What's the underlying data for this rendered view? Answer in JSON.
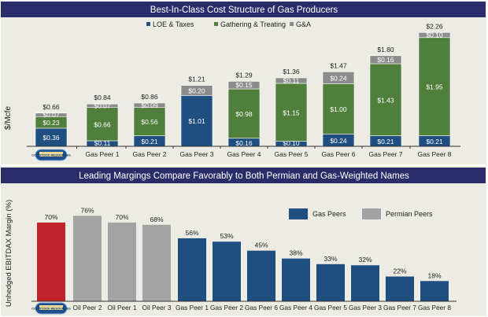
{
  "chart_data": [
    {
      "type": "bar",
      "stacked": true,
      "title": "Best-In-Class Cost Structure of Gas Producers",
      "ylabel": "$/Mcfe",
      "xlabel": "",
      "categories": [
        "Comstock Resources",
        "Gas Peer 1",
        "Gas Peer 2",
        "Gas Peer 3",
        "Gas Peer 4",
        "Gas Peer 5",
        "Gas Peer 6",
        "Gas Peer 7",
        "Gas Peer 8"
      ],
      "series": [
        {
          "name": "LOE & Taxes",
          "color": "#1f4e80",
          "values": [
            0.36,
            0.11,
            0.21,
            1.01,
            0.16,
            0.1,
            0.24,
            0.21,
            0.21
          ]
        },
        {
          "name": "Gathering & Treating",
          "color": "#4f7f3b",
          "values": [
            0.23,
            0.66,
            0.56,
            0,
            0.98,
            1.15,
            1.0,
            1.43,
            1.95
          ]
        },
        {
          "name": "G&A",
          "color": "#8c8c8c",
          "values": [
            0.07,
            0.07,
            0.09,
            0.2,
            0.15,
            0.11,
            0.24,
            0.16,
            0.1
          ]
        }
      ],
      "totals": [
        "$0.66",
        "$0.84",
        "$0.86",
        "$1.21",
        "$1.29",
        "$1.36",
        "$1.47",
        "$1.80",
        "$2.26"
      ],
      "ylim": [
        0,
        2.3
      ],
      "legend": "top-center",
      "grid": false
    },
    {
      "type": "bar",
      "title": "Leading Margings Compare Favorably to Both Permian and Gas-Weighted Names",
      "ylabel": "Unhedged EBITDAX Margin (%)",
      "xlabel": "",
      "categories": [
        "Comstock Resources",
        "Oil Peer 2",
        "Oil Peer 1",
        "Oil Peer 3",
        "Gas Peer 1",
        "Gas Peer 2",
        "Gas Peer 6",
        "Gas Peer 4",
        "Gas Peer 5",
        "Gas Peer 3",
        "Gas Peer 7",
        "Gas Peer 8"
      ],
      "values": [
        70,
        76,
        70,
        68,
        56,
        53,
        45,
        38,
        33,
        32,
        22,
        18
      ],
      "groups": [
        "company",
        "permian",
        "permian",
        "permian",
        "gas",
        "gas",
        "gas",
        "gas",
        "gas",
        "gas",
        "gas",
        "gas"
      ],
      "value_labels": [
        "70%",
        "76%",
        "70%",
        "68%",
        "56%",
        "53%",
        "45%",
        "38%",
        "33%",
        "32%",
        "22%",
        "18%"
      ],
      "colors": {
        "company": "#c1232b",
        "permian": "#a3a3a3",
        "gas": "#1f4e80"
      },
      "legend_entries": [
        {
          "name": "Gas Peers",
          "group": "gas"
        },
        {
          "name": "Permian Peers",
          "group": "permian"
        }
      ],
      "ylim": [
        0,
        80
      ],
      "legend": "top-right",
      "grid": false
    }
  ],
  "logo_text": "COMSTOCK RESOURCES"
}
